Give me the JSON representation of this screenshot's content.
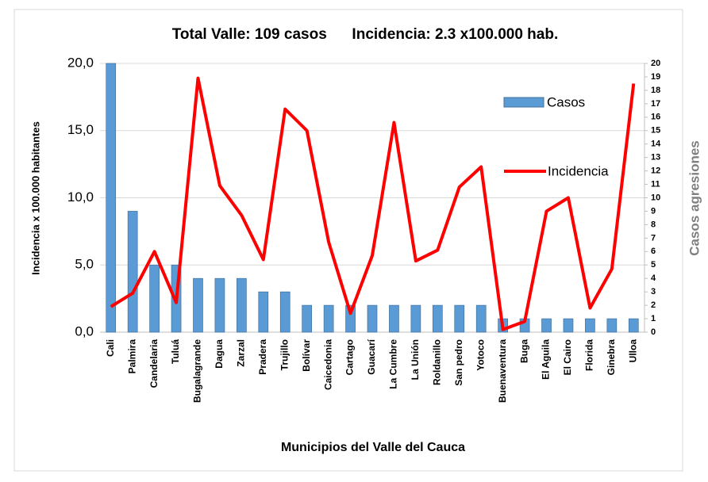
{
  "chart_data": {
    "type": "bar_line",
    "title": "Total Valle: 109 casos      Incidencia: 2.3 x100.000 hab.",
    "x_label": "Municipios del Valle del Cauca",
    "y_label": "Incidencia  x 100.000 habitantes",
    "y2_label": "Casos agresiones",
    "categories": [
      "Cali",
      "Palmira",
      "Candelaria",
      "Tuluá",
      "Bugalagrande",
      "Dagua",
      "Zarzal",
      "Pradera",
      "Trujillo",
      "Bolívar",
      "Caicedonia",
      "Cartago",
      "Guacarí",
      "La Cumbre",
      "La Unión",
      "Roldanillo",
      "San pedro",
      "Yotoco",
      "Buenaventura",
      "Buga",
      "El Aguila",
      "El Cairo",
      "Florida",
      "Ginebra",
      "Ulloa"
    ],
    "series": [
      {
        "name": "Casos",
        "type": "bar",
        "axis": "y2",
        "color": "#5b9bd5",
        "values": [
          20,
          9,
          5,
          5,
          4,
          4,
          4,
          3,
          3,
          2,
          2,
          2,
          2,
          2,
          2,
          2,
          2,
          2,
          1,
          1,
          1,
          1,
          1,
          1,
          1
        ]
      },
      {
        "name": "Incidencia",
        "type": "line",
        "color": "#ff0000",
        "values": [
          1.9,
          2.9,
          6.0,
          2.2,
          18.9,
          10.9,
          8.7,
          5.4,
          16.6,
          15.0,
          6.7,
          1.4,
          5.7,
          15.6,
          5.3,
          6.1,
          10.8,
          12.3,
          0.2,
          0.8,
          9.0,
          10.0,
          1.8,
          4.7,
          18.5
        ]
      }
    ],
    "ylim": [
      0,
      20
    ],
    "yticks": [
      {
        "value": 0,
        "label": "0,0"
      },
      {
        "value": 5,
        "label": "5,0"
      },
      {
        "value": 10,
        "label": "10,0"
      },
      {
        "value": 15,
        "label": "15,0"
      },
      {
        "value": 20,
        "label": "20,0"
      }
    ],
    "y2lim": [
      0,
      20
    ],
    "y2ticks": [
      0,
      1,
      2,
      3,
      4,
      5,
      6,
      7,
      8,
      9,
      10,
      11,
      12,
      13,
      14,
      15,
      16,
      17,
      18,
      19,
      20
    ],
    "grid": true
  }
}
